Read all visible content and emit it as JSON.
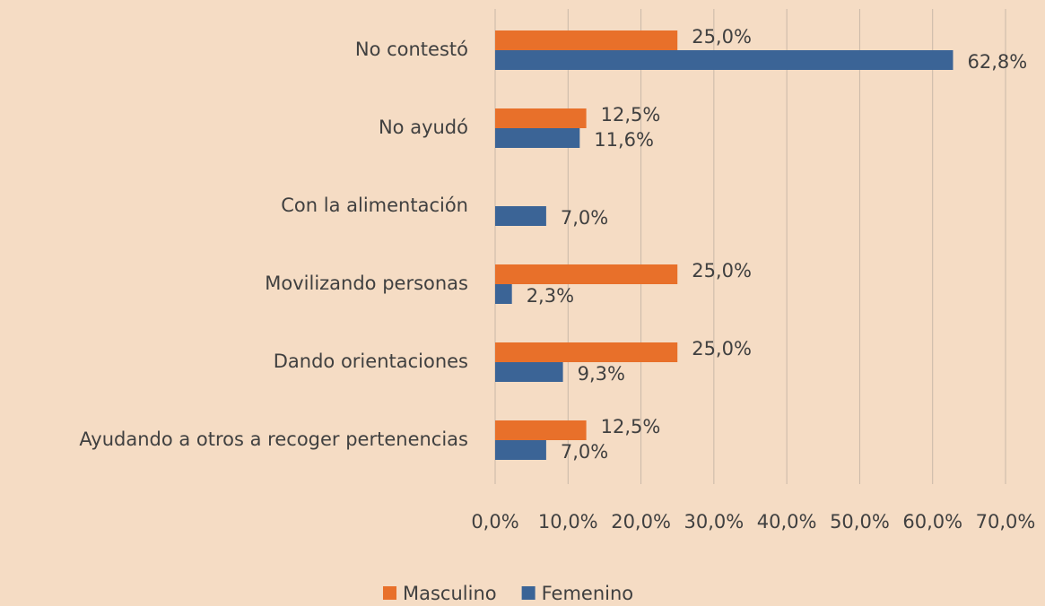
{
  "chart_data": {
    "type": "hbar",
    "categories": [
      "No contestó",
      "No ayudó",
      "Con la alimentación",
      "Movilizando personas",
      "Dando orientaciones",
      "Ayudando a otros a recoger pertenencias"
    ],
    "series": [
      {
        "name": "Masculino",
        "color": "#e8702a",
        "values": [
          25.0,
          12.5,
          null,
          25.0,
          25.0,
          12.5
        ],
        "value_labels": [
          "25,0%",
          "12,5%",
          null,
          "25,0%",
          "25,0%",
          "12,5%"
        ]
      },
      {
        "name": "Femenino",
        "color": "#3b6496",
        "values": [
          62.8,
          11.6,
          7.0,
          2.3,
          9.3,
          7.0
        ],
        "value_labels": [
          "62,8%",
          "11,6%",
          "7,0%",
          "2,3%",
          "9,3%",
          "7,0%"
        ]
      }
    ],
    "xlim": [
      0,
      70
    ],
    "xticks": [
      {
        "value": 0,
        "label": "0,0%"
      },
      {
        "value": 10,
        "label": "10,0%"
      },
      {
        "value": 20,
        "label": "20,0%"
      },
      {
        "value": 30,
        "label": "30,0%"
      },
      {
        "value": 40,
        "label": "40,0%"
      },
      {
        "value": 50,
        "label": "50,0%"
      },
      {
        "value": 60,
        "label": "60,0%"
      },
      {
        "value": 70,
        "label": "70,0%"
      }
    ],
    "grid": true,
    "legend": "bottom"
  }
}
